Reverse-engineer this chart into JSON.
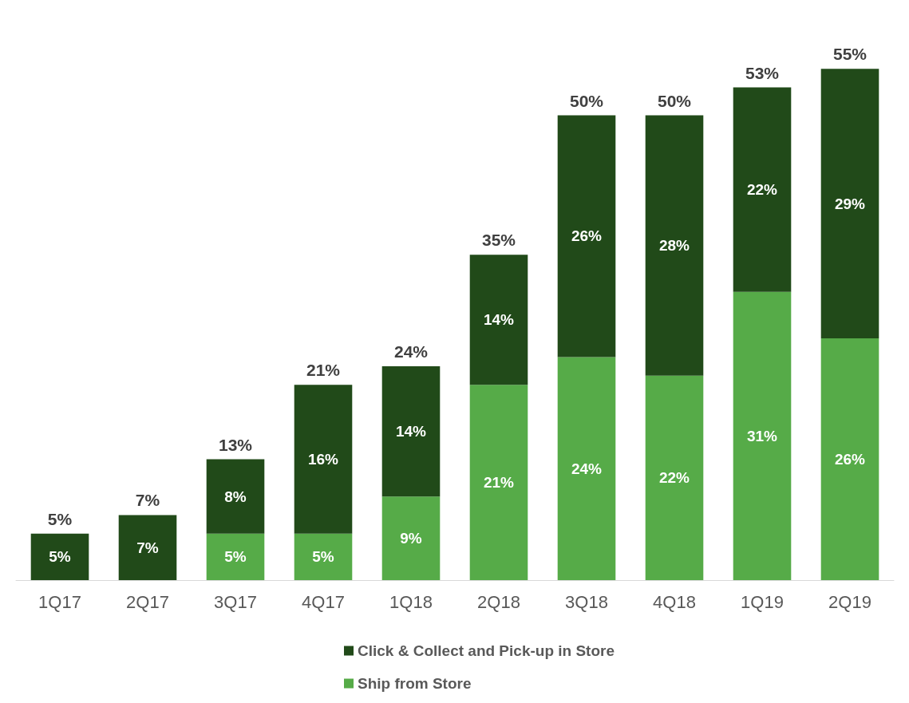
{
  "chart_data": {
    "type": "bar",
    "stacked": true,
    "categories": [
      "1Q17",
      "2Q17",
      "3Q17",
      "4Q17",
      "1Q18",
      "2Q18",
      "3Q18",
      "4Q18",
      "1Q19",
      "2Q19"
    ],
    "series": [
      {
        "name": "Ship from Store",
        "color": "#56ab48",
        "values": [
          null,
          null,
          5,
          5,
          9,
          21,
          24,
          22,
          31,
          26
        ],
        "value_labels": [
          null,
          null,
          "5%",
          "5%",
          "9%",
          "21%",
          "24%",
          "22%",
          "31%",
          "26%"
        ]
      },
      {
        "name": "Click & Collect and Pick-up in Store",
        "color": "#214a19",
        "values": [
          5,
          7,
          8,
          16,
          14,
          14,
          26,
          28,
          22,
          29
        ],
        "value_labels": [
          "5%",
          "7%",
          "8%",
          "16%",
          "14%",
          "14%",
          "26%",
          "28%",
          "22%",
          "29%"
        ]
      }
    ],
    "totals": [
      "5%",
      "7%",
      "13%",
      "21%",
      "24%",
      "35%",
      "50%",
      "50%",
      "53%",
      "55%"
    ],
    "legend": "bottom"
  }
}
